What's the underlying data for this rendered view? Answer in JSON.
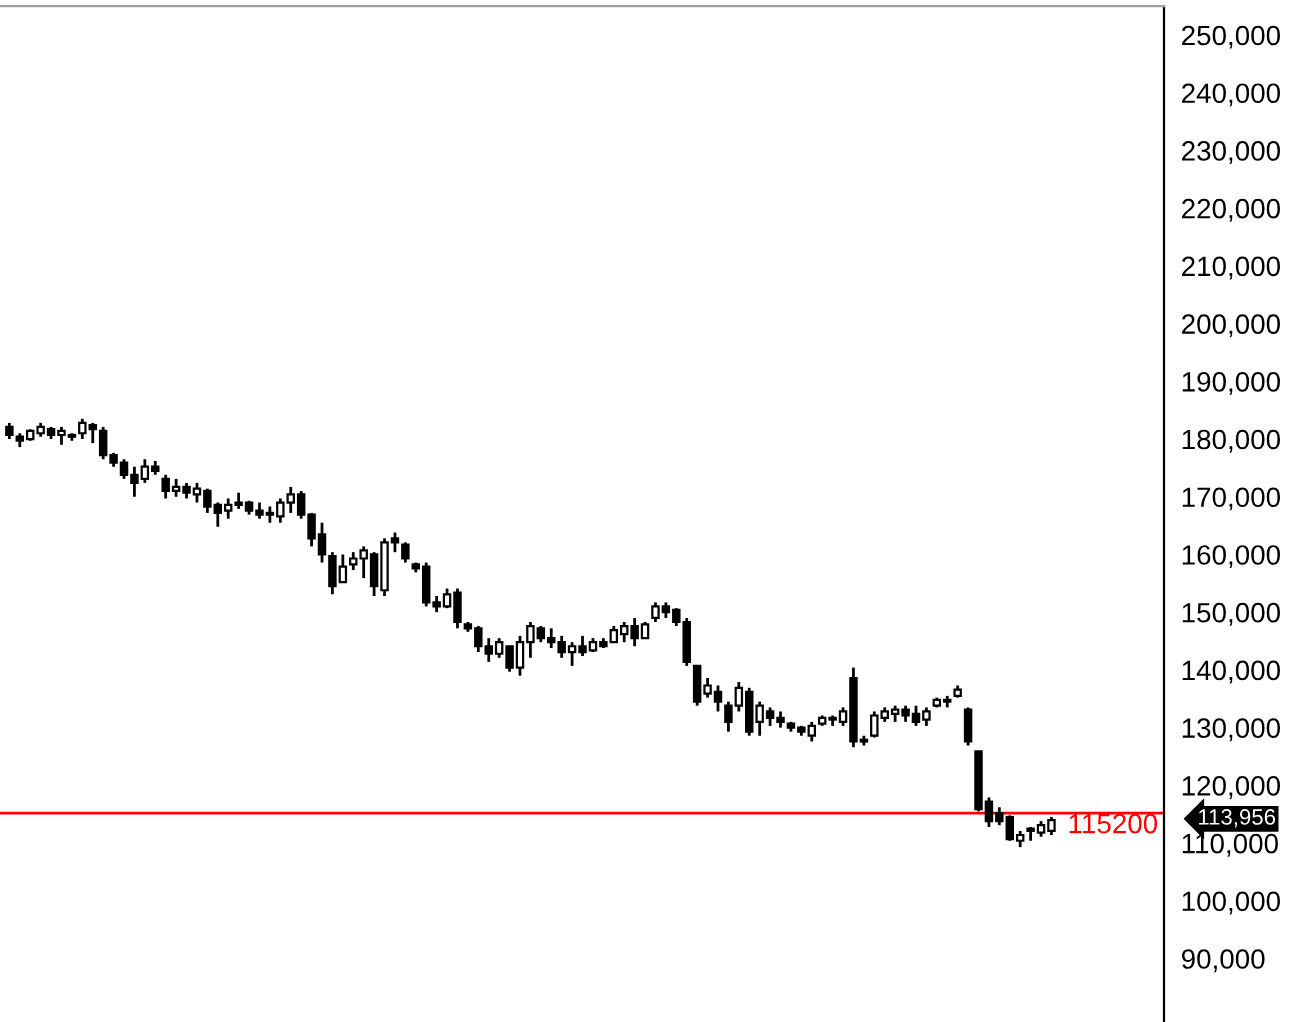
{
  "chart_data": {
    "type": "candlestick",
    "categories": [
      null,
      null,
      null,
      null,
      null,
      null,
      null,
      null,
      null,
      null,
      null,
      null,
      null,
      null,
      null,
      null,
      null,
      null,
      null,
      null,
      null,
      null,
      null,
      null,
      null,
      null,
      null,
      null,
      null,
      null,
      null,
      null,
      null,
      null,
      null,
      null,
      null,
      null,
      null,
      null,
      null,
      null,
      null,
      null,
      null,
      null,
      null,
      null,
      null,
      null,
      null,
      null,
      null,
      null,
      null,
      null,
      null,
      null,
      null,
      null,
      null,
      null,
      null,
      null,
      null,
      null,
      null,
      null,
      null,
      null,
      null,
      null,
      null,
      null,
      null,
      null,
      null,
      null,
      null,
      null,
      null,
      null,
      null,
      null,
      null,
      null,
      null,
      null,
      null,
      null,
      null,
      null,
      null,
      null,
      null,
      null,
      null,
      null,
      null,
      null,
      null
    ],
    "ohlc": [
      [
        182100,
        182800,
        180000,
        180700
      ],
      [
        180400,
        181000,
        178600,
        179700
      ],
      [
        180000,
        181700,
        179700,
        181400
      ],
      [
        181000,
        182800,
        180400,
        182100
      ],
      [
        181700,
        182100,
        180000,
        180700
      ],
      [
        180700,
        182100,
        179000,
        181400
      ],
      [
        180400,
        181000,
        179700,
        180700
      ],
      [
        181000,
        183500,
        180000,
        182800
      ],
      [
        182400,
        182800,
        179300,
        181700
      ],
      [
        181400,
        182100,
        176500,
        177200
      ],
      [
        177200,
        177600,
        175200,
        175900
      ],
      [
        175900,
        176500,
        173100,
        173800
      ],
      [
        173800,
        175200,
        170000,
        172400
      ],
      [
        173100,
        176500,
        172400,
        175200
      ],
      [
        175200,
        176200,
        173800,
        174500
      ],
      [
        173100,
        173800,
        169700,
        171000
      ],
      [
        171000,
        173100,
        170000,
        171700
      ],
      [
        171700,
        172400,
        169700,
        170700
      ],
      [
        170400,
        172400,
        169000,
        171400
      ],
      [
        171000,
        171400,
        167200,
        168300
      ],
      [
        168600,
        169000,
        164800,
        167200
      ],
      [
        167600,
        169700,
        166200,
        168600
      ],
      [
        168600,
        170700,
        167900,
        169000
      ],
      [
        169000,
        169300,
        166900,
        167600
      ],
      [
        167600,
        169000,
        166200,
        166900
      ],
      [
        166900,
        168300,
        165500,
        167200
      ],
      [
        166600,
        169700,
        165500,
        169000
      ],
      [
        169000,
        171700,
        167200,
        170400
      ],
      [
        170400,
        171000,
        166200,
        166900
      ],
      [
        166900,
        167200,
        161400,
        162800
      ],
      [
        163500,
        165500,
        158600,
        160000
      ],
      [
        159700,
        160400,
        153100,
        154500
      ],
      [
        155200,
        160000,
        155200,
        157900
      ],
      [
        158300,
        160400,
        157300,
        159300
      ],
      [
        159300,
        161400,
        155900,
        160700
      ],
      [
        160000,
        160400,
        152800,
        154500
      ],
      [
        153800,
        162800,
        152800,
        162100
      ],
      [
        162800,
        163800,
        160400,
        162100
      ],
      [
        161700,
        162100,
        158600,
        159300
      ],
      [
        158300,
        158600,
        156900,
        157600
      ],
      [
        157900,
        158600,
        151000,
        151700
      ],
      [
        151700,
        152800,
        150000,
        151000
      ],
      [
        151000,
        154100,
        150700,
        153100
      ],
      [
        153400,
        154100,
        147200,
        148300
      ],
      [
        147900,
        148300,
        146600,
        147200
      ],
      [
        147200,
        147600,
        143100,
        144100
      ],
      [
        144100,
        145500,
        141400,
        142800
      ],
      [
        142800,
        145500,
        142100,
        144800
      ],
      [
        144100,
        144100,
        139700,
        140400
      ],
      [
        140400,
        145900,
        139000,
        144800
      ],
      [
        144800,
        148300,
        142100,
        147600
      ],
      [
        147200,
        147600,
        144800,
        145500
      ],
      [
        145500,
        147200,
        143800,
        144800
      ],
      [
        144800,
        145900,
        142100,
        143100
      ],
      [
        143100,
        144800,
        140700,
        144100
      ],
      [
        144100,
        145900,
        142400,
        143100
      ],
      [
        143400,
        145500,
        143100,
        144800
      ],
      [
        144800,
        145500,
        143800,
        144100
      ],
      [
        144800,
        147600,
        144800,
        146900
      ],
      [
        146200,
        148300,
        144800,
        147600
      ],
      [
        147600,
        149000,
        144100,
        145500
      ],
      [
        145500,
        148300,
        145500,
        147900
      ],
      [
        149000,
        151700,
        148300,
        151000
      ],
      [
        151000,
        151700,
        149000,
        150000
      ],
      [
        150400,
        150700,
        147600,
        148300
      ],
      [
        148300,
        149000,
        140700,
        141400
      ],
      [
        140700,
        140700,
        133800,
        134500
      ],
      [
        135900,
        138600,
        135200,
        137300
      ],
      [
        136200,
        137300,
        132800,
        134500
      ],
      [
        133800,
        134500,
        129300,
        131000
      ],
      [
        133800,
        137900,
        132800,
        136900
      ],
      [
        136200,
        136900,
        128600,
        129300
      ],
      [
        131000,
        134500,
        128600,
        133800
      ],
      [
        132800,
        133500,
        130300,
        131700
      ],
      [
        131700,
        132800,
        130000,
        131000
      ],
      [
        130700,
        131000,
        129300,
        130000
      ],
      [
        130000,
        130300,
        128600,
        129300
      ],
      [
        128600,
        131000,
        127600,
        130300
      ],
      [
        130700,
        132100,
        130300,
        131700
      ],
      [
        131400,
        132100,
        130300,
        131700
      ],
      [
        131000,
        133500,
        130300,
        132800
      ],
      [
        138600,
        140400,
        126600,
        127600
      ],
      [
        127600,
        128600,
        126900,
        127900
      ],
      [
        128600,
        132800,
        128300,
        132100
      ],
      [
        131700,
        133500,
        131000,
        132800
      ],
      [
        132400,
        133800,
        131000,
        133100
      ],
      [
        133100,
        133800,
        131000,
        132100
      ],
      [
        132400,
        133800,
        130300,
        131000
      ],
      [
        131400,
        133500,
        130300,
        132800
      ],
      [
        133800,
        135200,
        133500,
        134800
      ],
      [
        134500,
        135500,
        133500,
        134800
      ],
      [
        135500,
        137300,
        135200,
        136600
      ],
      [
        133100,
        133500,
        126900,
        127600
      ],
      [
        125900,
        125900,
        115500,
        115900
      ],
      [
        117200,
        117900,
        112800,
        113800
      ],
      [
        115200,
        116200,
        113100,
        113800
      ],
      [
        114500,
        114800,
        110400,
        110700
      ],
      [
        110400,
        112100,
        109300,
        111400
      ],
      [
        112100,
        112800,
        110400,
        112500
      ],
      [
        111800,
        113800,
        111100,
        113100
      ],
      [
        112100,
        114500,
        111400,
        113956
      ]
    ],
    "color": "#000000",
    "ylim": [
      79000,
      255000
    ],
    "yticks": [
      {
        "value": 90000,
        "label": "90,000"
      },
      {
        "value": 100000,
        "label": "100,000"
      },
      {
        "value": 110000,
        "label": "110,000"
      },
      {
        "value": 120000,
        "label": "120,000"
      },
      {
        "value": 130000,
        "label": "130,000"
      },
      {
        "value": 140000,
        "label": "140,000"
      },
      {
        "value": 150000,
        "label": "150,000"
      },
      {
        "value": 160000,
        "label": "160,000"
      },
      {
        "value": 170000,
        "label": "170,000"
      },
      {
        "value": 180000,
        "label": "180,000"
      },
      {
        "value": 190000,
        "label": "190,000"
      },
      {
        "value": 200000,
        "label": "200,000"
      },
      {
        "value": 210000,
        "label": "210,000"
      },
      {
        "value": 220000,
        "label": "220,000"
      },
      {
        "value": 230000,
        "label": "230,000"
      },
      {
        "value": 240000,
        "label": "240,000"
      },
      {
        "value": 250000,
        "label": "250,000"
      }
    ],
    "ref_lines": [
      {
        "axis": "y",
        "value": 115200,
        "label": "115200",
        "color": "#ff0000"
      }
    ],
    "annotations": [
      "113,956"
    ],
    "tick_labels": "y",
    "grid": false
  }
}
